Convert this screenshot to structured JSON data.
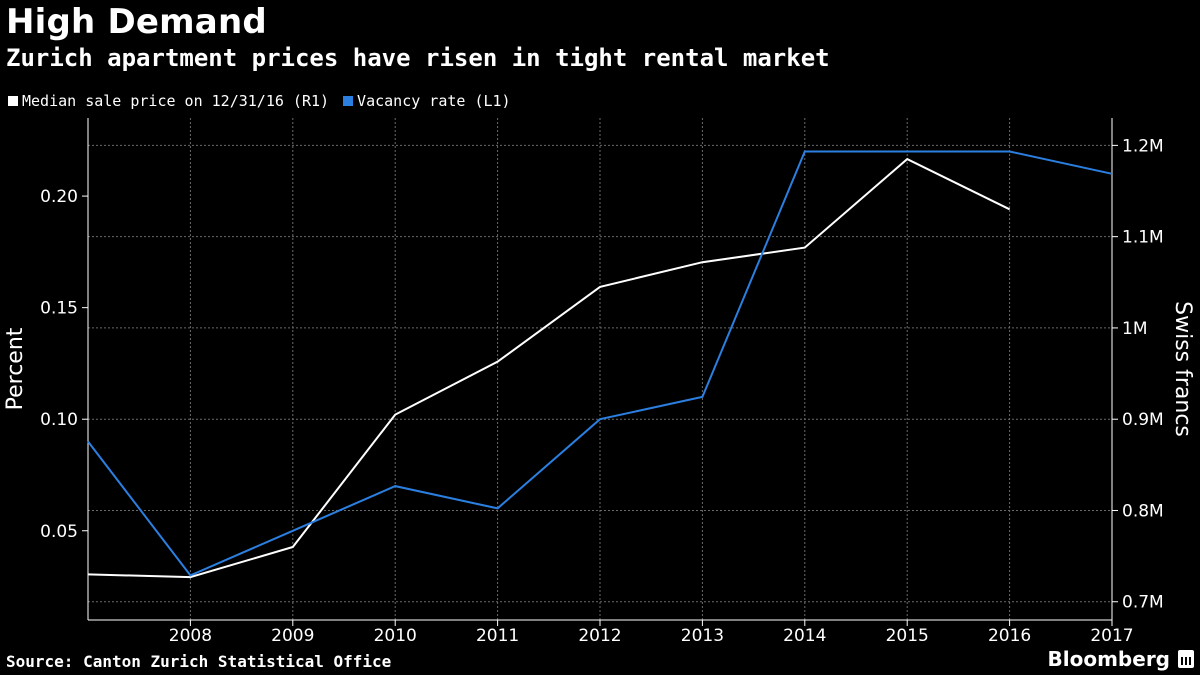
{
  "title": "High Demand",
  "subtitle": "Zurich apartment prices have risen in tight rental market",
  "source": "Source: Canton Zurich Statistical Office",
  "brand": "Bloomberg",
  "legend": [
    {
      "label": "Median sale price on 12/31/16 (R1)",
      "color": "#ffffff"
    },
    {
      "label": "Vacancy rate (L1)",
      "color": "#2b7fe0"
    }
  ],
  "chart_data": {
    "type": "line",
    "title": "High Demand",
    "subtitle": "Zurich apartment prices have risen in tight rental market",
    "x_tick_labels": [
      "2008",
      "2009",
      "2010",
      "2011",
      "2012",
      "2013",
      "2014",
      "2015",
      "2016",
      "2017"
    ],
    "x_range": [
      2007,
      2017
    ],
    "ylabel_left": "Percent",
    "ylabel_right": "Swiss francs",
    "ylim_left": [
      0.01,
      0.235
    ],
    "yticks_left": [
      0.05,
      0.1,
      0.15,
      0.2
    ],
    "yticks_left_labels": [
      "0.05",
      "0.10",
      "0.15",
      "0.20"
    ],
    "ylim_right": [
      680000,
      1230000
    ],
    "yticks_right": [
      700000,
      800000,
      900000,
      1000000,
      1100000,
      1200000
    ],
    "yticks_right_labels": [
      "0.7M",
      "0.8M",
      "0.9M",
      "1M",
      "1.1M",
      "1.2M"
    ],
    "grid": true,
    "legend_position": "top-left",
    "series": [
      {
        "name": "Median sale price on 12/31/16 (R1)",
        "axis": "right",
        "color": "#ffffff",
        "x": [
          2007,
          2008,
          2009,
          2010,
          2011,
          2012,
          2013,
          2014,
          2015,
          2016
        ],
        "y": [
          730000,
          727000,
          760000,
          905000,
          963000,
          1045000,
          1072000,
          1088000,
          1185000,
          1130000
        ]
      },
      {
        "name": "Vacancy rate (L1)",
        "axis": "left",
        "color": "#2b7fe0",
        "x": [
          2007,
          2008,
          2009,
          2010,
          2011,
          2012,
          2013,
          2014,
          2015,
          2016,
          2017
        ],
        "y": [
          0.09,
          0.03,
          0.05,
          0.07,
          0.06,
          0.1,
          0.11,
          0.22,
          0.22,
          0.22,
          0.21
        ]
      }
    ]
  }
}
